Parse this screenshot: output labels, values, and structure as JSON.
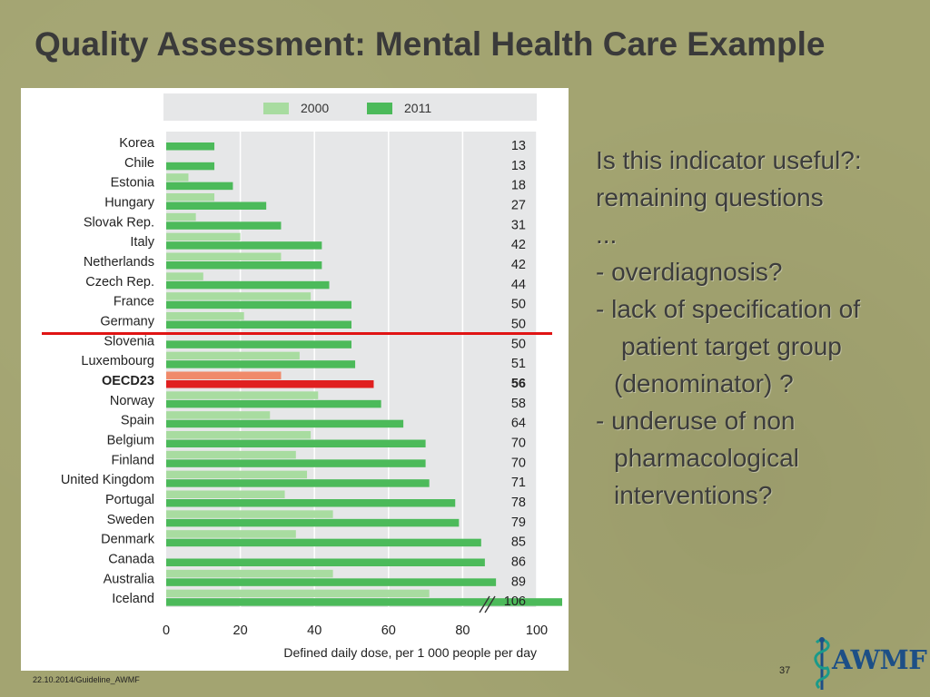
{
  "slide": {
    "title": "Quality Assessment:  Mental Health Care Example",
    "footer_left": "22.10.2014/Guideline_AWMF",
    "page_number": "37",
    "logo_text": "AWMF"
  },
  "bullets": [
    {
      "text": "Is this indicator useful?:",
      "indent": 0
    },
    {
      "text": "remaining questions",
      "indent": 0
    },
    {
      "text": "...",
      "indent": 0
    },
    {
      "text": "- overdiagnosis?",
      "indent": 0
    },
    {
      "text": "- lack of specification of",
      "indent": 0
    },
    {
      "text": "patient target group",
      "indent": 2
    },
    {
      "text": "(denominator) ?",
      "indent": 1
    },
    {
      "text": "- underuse of non",
      "indent": 0
    },
    {
      "text": "pharmacological",
      "indent": 1
    },
    {
      "text": "interventions?",
      "indent": 1
    }
  ],
  "colors": {
    "series_2000": "#a8dca0",
    "series_2011": "#4cba5a",
    "highlight_2000": "#f08a6a",
    "highlight_2011": "#e02020",
    "reference_line": "#e01414"
  },
  "chart_data": {
    "type": "bar",
    "orientation": "horizontal",
    "xlabel": "Defined daily dose, per 1 000 people per day",
    "xlim": [
      0,
      100
    ],
    "xticks": [
      0,
      20,
      40,
      60,
      80,
      100
    ],
    "legend": {
      "placement": "top",
      "entries": [
        "2000",
        "2011"
      ]
    },
    "grid": true,
    "highlight_category": "OECD23",
    "axis_break": true,
    "categories": [
      "Korea",
      "Chile",
      "Estonia",
      "Hungary",
      "Slovak Rep.",
      "Italy",
      "Netherlands",
      "Czech Rep.",
      "France",
      "Germany",
      "Slovenia",
      "Luxembourg",
      "OECD23",
      "Norway",
      "Spain",
      "Belgium",
      "Finland",
      "United Kingdom",
      "Portugal",
      "Sweden",
      "Denmark",
      "Canada",
      "Australia",
      "Iceland"
    ],
    "series": [
      {
        "name": "2000",
        "values": [
          null,
          null,
          6,
          13,
          8,
          20,
          31,
          10,
          39,
          21,
          null,
          36,
          31,
          41,
          28,
          39,
          35,
          38,
          32,
          45,
          35,
          null,
          45,
          71
        ]
      },
      {
        "name": "2011",
        "values": [
          13,
          13,
          18,
          27,
          31,
          42,
          42,
          44,
          50,
          50,
          50,
          51,
          56,
          58,
          64,
          70,
          70,
          71,
          78,
          79,
          85,
          86,
          89,
          106
        ]
      }
    ],
    "value_labels": [
      "13",
      "13",
      "18",
      "27",
      "31",
      "42",
      "42",
      "44",
      "50",
      "50",
      "50",
      "51",
      "56",
      "58",
      "64",
      "70",
      "70",
      "71",
      "78",
      "79",
      "85",
      "86",
      "89",
      "106"
    ]
  }
}
